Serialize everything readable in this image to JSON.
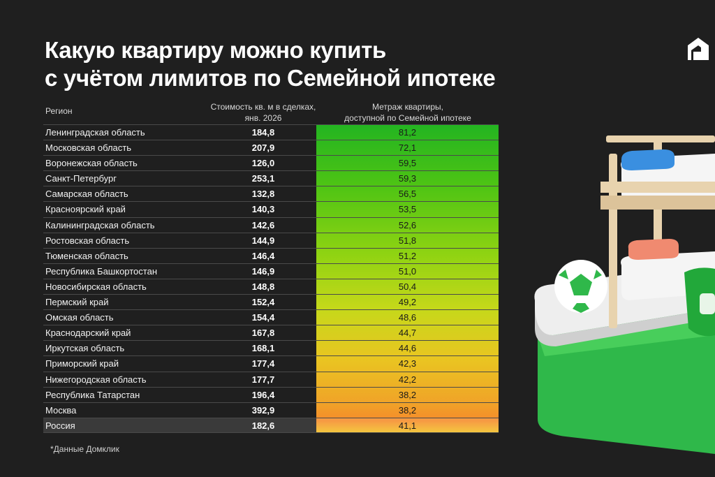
{
  "header": {
    "title_line1": "Какую квартиру можно купить",
    "title_line2": "с учётом лимитов по Семейной ипотеке"
  },
  "table": {
    "col_region": "Регион",
    "col_price_line1": "Стоимость кв. м в сделках,",
    "col_price_line2": "янв. 2026",
    "col_area_line1": "Метраж квартиры,",
    "col_area_line2": "доступной по Семейной ипотеке",
    "rows": [
      {
        "region": "Ленинградская область",
        "price": "184,8",
        "area": "81,2"
      },
      {
        "region": "Московская область",
        "price": "207,9",
        "area": "72,1"
      },
      {
        "region": "Воронежская область",
        "price": "126,0",
        "area": "59,5"
      },
      {
        "region": "Санкт-Петербург",
        "price": "253,1",
        "area": "59,3"
      },
      {
        "region": "Самарская область",
        "price": "132,8",
        "area": "56,5"
      },
      {
        "region": "Красноярский край",
        "price": "140,3",
        "area": "53,5"
      },
      {
        "region": "Калининградская область",
        "price": "142,6",
        "area": "52,6"
      },
      {
        "region": "Ростовская область",
        "price": "144,9",
        "area": "51,8"
      },
      {
        "region": "Тюменская область",
        "price": "146,4",
        "area": "51,2"
      },
      {
        "region": "Республика Башкортостан",
        "price": "146,9",
        "area": "51,0"
      },
      {
        "region": "Новосибирская область",
        "price": "148,8",
        "area": "50,4"
      },
      {
        "region": "Пермский край",
        "price": "152,4",
        "area": "49,2"
      },
      {
        "region": "Омская область",
        "price": "154,4",
        "area": "48,6"
      },
      {
        "region": "Краснодарский край",
        "price": "167,8",
        "area": "44,7"
      },
      {
        "region": "Иркутская область",
        "price": "168,1",
        "area": "44,6"
      },
      {
        "region": "Приморский край",
        "price": "177,4",
        "area": "42,3"
      },
      {
        "region": "Нижегородская область",
        "price": "177,7",
        "area": "42,2"
      },
      {
        "region": "Республика Татарстан",
        "price": "196,4",
        "area": "38,2"
      },
      {
        "region": "Москва",
        "price": "392,9",
        "area": "38,2"
      },
      {
        "region": "Россия",
        "price": "182,6",
        "area": "41,1"
      }
    ]
  },
  "footnote": "*Данные Домклик",
  "colors": {
    "background": "#1f1f1f",
    "gradient_top": "#23b421",
    "gradient_bottom": "#f58c2a"
  },
  "icons": {
    "logo": "domclick-logo-icon",
    "illustration": "bunk-bed-illustration"
  }
}
